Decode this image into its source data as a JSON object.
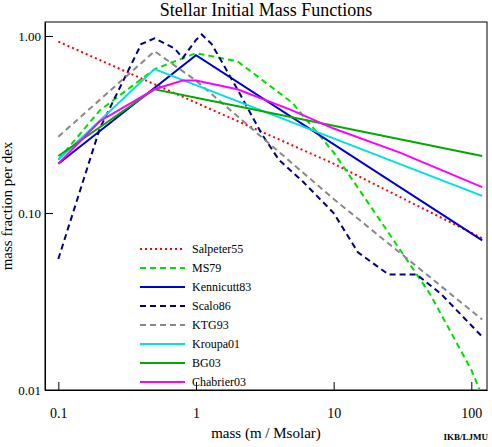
{
  "chart_data": {
    "type": "line",
    "title": "Stellar Initial Mass Functions",
    "xlabel": "mass (m / Msolar)",
    "ylabel": "mass fraction per dex",
    "annotations": [
      "IKB/LJMU"
    ],
    "log": true,
    "grid": false,
    "legend": "lower left",
    "xlim": [
      0.08,
      130
    ],
    "ylim": [
      0.01,
      1.2
    ],
    "xticks": [
      0.1,
      1,
      10,
      100
    ],
    "yticks": [
      0.01,
      {
        "value": 0.1,
        "label": "0.10"
      },
      {
        "value": 1,
        "label": "1.00"
      }
    ],
    "series": [
      {
        "name": "Salpeter55",
        "color": "#ff0000",
        "line_style": "dotted",
        "x": [
          0.1,
          1,
          10,
          120
        ],
        "values": [
          0.93,
          0.42,
          0.19,
          0.072
        ]
      },
      {
        "name": "MS79",
        "color": "#00e000",
        "line_style": "dashed",
        "x": [
          0.1,
          0.2,
          0.5,
          1,
          2,
          5,
          10,
          20,
          50,
          100,
          115
        ],
        "values": [
          0.2,
          0.38,
          0.65,
          0.8,
          0.72,
          0.42,
          0.22,
          0.1,
          0.035,
          0.013,
          0.01
        ]
      },
      {
        "name": "Kennicutt83",
        "color": "#0000cc",
        "line_style": "solid",
        "x": [
          0.1,
          1,
          120
        ],
        "values": [
          0.19,
          0.78,
          0.07
        ]
      },
      {
        "name": "Scalo86",
        "color": "#000080",
        "line_style": "dashed",
        "x": [
          0.1,
          0.2,
          0.4,
          0.5,
          0.7,
          0.8,
          1,
          1.1,
          1.3,
          2,
          3,
          4,
          6,
          10,
          15,
          25,
          40,
          60,
          120
        ],
        "values": [
          0.055,
          0.3,
          0.9,
          0.97,
          0.85,
          0.75,
          0.95,
          1.02,
          0.9,
          0.5,
          0.28,
          0.2,
          0.15,
          0.1,
          0.06,
          0.045,
          0.045,
          0.035,
          0.02
        ]
      },
      {
        "name": "KTG93",
        "color": "#888888",
        "line_style": "dashed",
        "x": [
          0.1,
          0.5,
          1,
          10,
          120
        ],
        "values": [
          0.27,
          0.82,
          0.56,
          0.12,
          0.025
        ]
      },
      {
        "name": "Kroupa01",
        "color": "#00e0e0",
        "line_style": "solid",
        "x": [
          0.1,
          0.5,
          120
        ],
        "values": [
          0.2,
          0.65,
          0.125
        ]
      },
      {
        "name": "BG03",
        "color": "#00aa00",
        "line_style": "solid",
        "x": [
          0.1,
          0.5,
          120
        ],
        "values": [
          0.21,
          0.5,
          0.21
        ]
      },
      {
        "name": "Chabrier03",
        "color": "#ff00ff",
        "line_style": "solid",
        "x": [
          0.1,
          0.2,
          0.5,
          0.8,
          1,
          2,
          5,
          10,
          30,
          120
        ],
        "values": [
          0.19,
          0.33,
          0.5,
          0.56,
          0.56,
          0.5,
          0.38,
          0.3,
          0.22,
          0.14
        ]
      }
    ]
  }
}
